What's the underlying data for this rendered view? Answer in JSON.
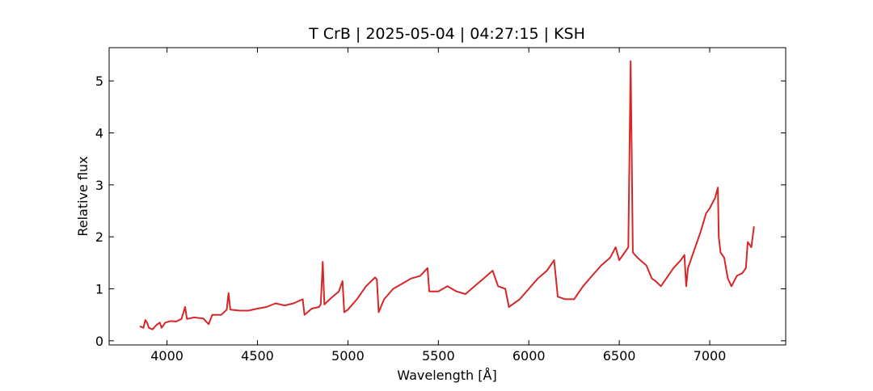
{
  "chart_data": {
    "type": "line",
    "title": "T CrB | 2025-05-04 | 04:27:15 | KSH",
    "x_label": "Wavelength [Å]",
    "y_label": "Relative flux",
    "xlim": [
      3680,
      7420
    ],
    "ylim": [
      -0.08,
      5.64
    ],
    "xticks": [
      4000,
      4500,
      5000,
      5500,
      6000,
      6500,
      7000
    ],
    "yticks": [
      0,
      1,
      2,
      3,
      4,
      5
    ],
    "series": [
      {
        "color": "#d62728",
        "x": [
          3850,
          3870,
          3880,
          3890,
          3900,
          3920,
          3940,
          3960,
          3970,
          3990,
          4020,
          4050,
          4080,
          4100,
          4110,
          4150,
          4200,
          4230,
          4250,
          4300,
          4330,
          4340,
          4350,
          4400,
          4450,
          4500,
          4550,
          4600,
          4650,
          4700,
          4750,
          4760,
          4800,
          4840,
          4850,
          4861,
          4870,
          4900,
          4950,
          4970,
          4980,
          5000,
          5050,
          5100,
          5150,
          5160,
          5170,
          5200,
          5250,
          5300,
          5350,
          5400,
          5440,
          5450,
          5500,
          5550,
          5600,
          5650,
          5700,
          5750,
          5800,
          5830,
          5870,
          5890,
          5950,
          6000,
          6050,
          6100,
          6140,
          6150,
          6160,
          6200,
          6250,
          6300,
          6350,
          6400,
          6450,
          6480,
          6500,
          6530,
          6550,
          6563,
          6575,
          6600,
          6650,
          6680,
          6700,
          6730,
          6760,
          6800,
          6840,
          6860,
          6870,
          6880,
          6900,
          6950,
          6980,
          7000,
          7030,
          7045,
          7050,
          7060,
          7080,
          7100,
          7120,
          7150,
          7180,
          7200,
          7210,
          7230,
          7245
        ],
        "values": [
          0.28,
          0.25,
          0.4,
          0.35,
          0.25,
          0.22,
          0.3,
          0.35,
          0.25,
          0.35,
          0.38,
          0.37,
          0.42,
          0.65,
          0.42,
          0.45,
          0.43,
          0.32,
          0.5,
          0.5,
          0.6,
          0.92,
          0.6,
          0.58,
          0.58,
          0.62,
          0.65,
          0.72,
          0.68,
          0.72,
          0.8,
          0.5,
          0.62,
          0.65,
          0.7,
          1.52,
          0.7,
          0.8,
          0.95,
          1.15,
          0.55,
          0.6,
          0.8,
          1.05,
          1.22,
          1.18,
          0.55,
          0.8,
          1.0,
          1.1,
          1.2,
          1.25,
          1.4,
          0.95,
          0.95,
          1.05,
          0.95,
          0.9,
          1.05,
          1.2,
          1.35,
          1.05,
          1.0,
          0.65,
          0.8,
          1.0,
          1.2,
          1.35,
          1.55,
          1.2,
          0.85,
          0.8,
          0.8,
          1.05,
          1.25,
          1.45,
          1.6,
          1.8,
          1.55,
          1.7,
          1.8,
          5.38,
          1.7,
          1.6,
          1.45,
          1.2,
          1.15,
          1.05,
          1.2,
          1.4,
          1.55,
          1.65,
          1.05,
          1.4,
          1.6,
          2.1,
          2.45,
          2.55,
          2.75,
          2.95,
          2.0,
          1.7,
          1.6,
          1.2,
          1.05,
          1.25,
          1.3,
          1.4,
          1.9,
          1.8,
          2.2
        ]
      }
    ]
  }
}
